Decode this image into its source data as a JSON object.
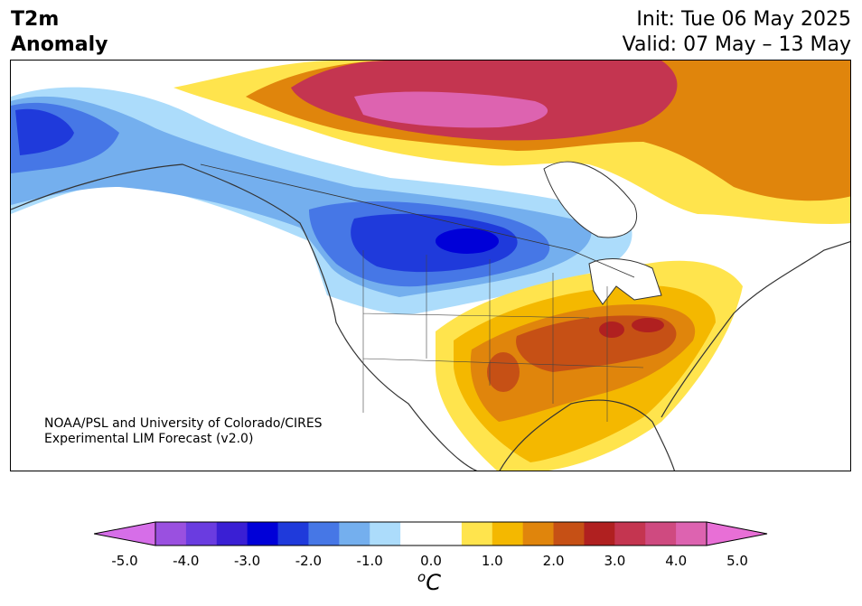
{
  "header": {
    "variable": "T2m",
    "subtitle": "Anomaly",
    "init": "Init: Tue 06 May 2025",
    "valid": "Valid: 07 May – 13 May"
  },
  "credit": {
    "line1": "NOAA/PSL and University of Colorado/CIRES",
    "line2": "Experimental LIM Forecast (v2.0)"
  },
  "colorbar": {
    "unit_o": "o",
    "unit_c": "C",
    "ticks": [
      "-5.0",
      "-4.0",
      "-3.0",
      "-2.0",
      "-1.0",
      "0.0",
      "1.0",
      "2.0",
      "3.0",
      "4.0",
      "5.0"
    ],
    "low_extend": "#d66ee8",
    "high_extend": "#e86fd6",
    "colors": [
      "#9a50e0",
      "#6a3ce0",
      "#3a1fd4",
      "#0000d8",
      "#1f3adb",
      "#4677e6",
      "#74afee",
      "#acdcfb",
      "#ffffff",
      "#ffffff",
      "#ffe44d",
      "#f4b800",
      "#e0850c",
      "#c65015",
      "#b02020",
      "#c43550",
      "#cf4a80",
      "#dd63b0"
    ]
  },
  "map": {
    "features": [
      "canada-warm-anomaly",
      "northwest-cold-anomaly",
      "central-plains-cold-anomaly",
      "southeast-warm-anomaly",
      "texas-warm-anomaly"
    ]
  }
}
